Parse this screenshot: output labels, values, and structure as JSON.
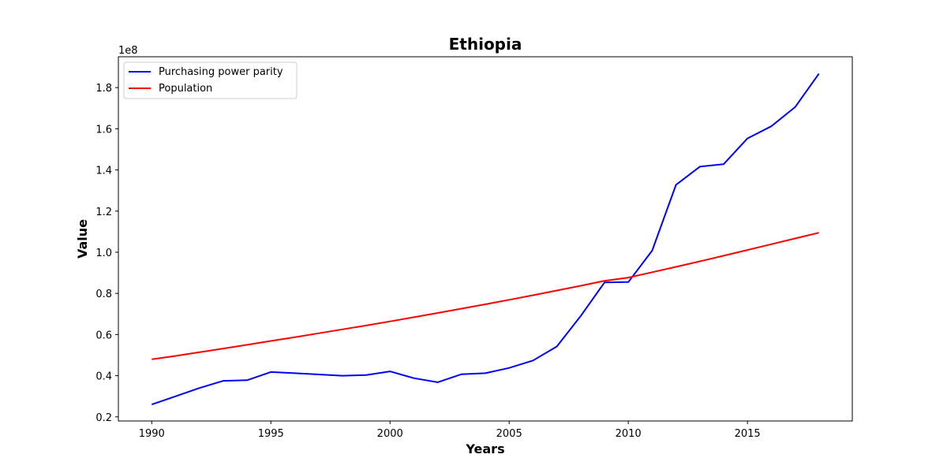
{
  "chart_data": {
    "type": "line",
    "title": "Ethiopia",
    "xlabel": "Years",
    "ylabel": "Value",
    "y_offset_label": "1e8",
    "xlim": [
      1988.6,
      2019.4
    ],
    "ylim": [
      0.18,
      1.95
    ],
    "y_scale_note": "values in units of 1e8",
    "x_ticks": [
      1990,
      1995,
      2000,
      2005,
      2010,
      2015
    ],
    "y_ticks": [
      0.2,
      0.4,
      0.6,
      0.8,
      1.0,
      1.2,
      1.4,
      1.6,
      1.8
    ],
    "y_tick_labels": [
      "0.2",
      "0.4",
      "0.6",
      "0.8",
      "1.0",
      "1.2",
      "1.4",
      "1.6",
      "1.8"
    ],
    "grid": false,
    "legend_position": "top-left",
    "x": [
      1990,
      1991,
      1992,
      1993,
      1994,
      1995,
      1996,
      1997,
      1998,
      1999,
      2000,
      2001,
      2002,
      2003,
      2004,
      2005,
      2006,
      2007,
      2008,
      2009,
      2010,
      2011,
      2012,
      2013,
      2014,
      2015,
      2016,
      2017,
      2018
    ],
    "series": [
      {
        "name": "Purchasing power parity",
        "color": "#0000ff",
        "values": [
          0.26,
          0.3,
          0.34,
          0.375,
          0.378,
          0.418,
          0.412,
          0.406,
          0.4,
          0.403,
          0.421,
          0.388,
          0.368,
          0.407,
          0.412,
          0.438,
          0.474,
          0.542,
          0.69,
          0.853,
          0.855,
          1.008,
          1.328,
          1.416,
          1.428,
          1.553,
          1.612,
          1.705,
          1.868
        ]
      },
      {
        "name": "Population",
        "color": "#ff0000",
        "values": [
          0.48,
          0.496,
          0.514,
          0.532,
          0.55,
          0.569,
          0.587,
          0.606,
          0.625,
          0.644,
          0.664,
          0.684,
          0.705,
          0.726,
          0.747,
          0.769,
          0.791,
          0.814,
          0.837,
          0.861,
          0.877,
          0.903,
          0.929,
          0.956,
          0.983,
          1.011,
          1.039,
          1.067,
          1.095
        ]
      }
    ]
  }
}
